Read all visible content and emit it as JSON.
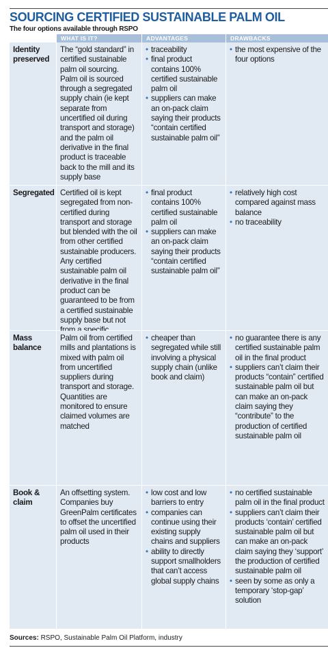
{
  "header": {
    "title": "SOURCING CERTIFIED SUSTAINABLE PALM OIL",
    "subtitle": "The four options available through RSPO"
  },
  "table": {
    "columns": [
      "WHAT IS IT?",
      "ADVANTAGES",
      "DRAWBACKS"
    ],
    "rows": [
      {
        "label": "Identity preserved",
        "what": "The “gold standard” in certified sustainable palm oil sourcing. Palm oil is sourced through a segregated supply chain (ie kept separate from uncertified oil during transport and storage) and the palm oil derivative in the final product is traceable back to the mill and its supply base",
        "advantages": [
          "traceability",
          "final product contains 100% certified sustainable palm oil",
          "suppliers can make an on-pack claim saying their products “contain certified sustainable palm oil”"
        ],
        "drawbacks": [
          "the most expensive of the four options"
        ]
      },
      {
        "label": "Segregated",
        "what": "Certified oil is kept segregated from non-certified during transport and storage but blended with the oil from other certified sustainable producers. Any certified sustainable palm oil derivative in the final product can be guaranteed to be from a certified sustainable supply base but not from a specific plantation/mill",
        "advantages": [
          "final product contains 100% certified sustainable palm oil",
          "suppliers can make an on-pack claim saying their products “contain certified sustainable palm oil”"
        ],
        "drawbacks": [
          "relatively high cost compared against mass balance",
          "no traceability"
        ]
      },
      {
        "label": "Mass balance",
        "what": "Palm oil from certified mills and plantations is mixed with palm oil from uncertified suppliers during transport and storage. Quantities are monitored to ensure claimed volumes are matched",
        "advantages": [
          "cheaper than segregated while still involving a physical supply chain (unlike book and claim)"
        ],
        "drawbacks": [
          "no guarantee there is any certified sustainable palm oil in the final product",
          "suppliers can’t claim their products “contain” certified sustainable palm oil but can make an on-pack claim saying they “contribute” to the production of certified sustainable palm oil"
        ]
      },
      {
        "label": "Book & claim",
        "what": "An offsetting system. Companies buy GreenPalm certificates to offset the uncertified palm oil used in their products",
        "advantages": [
          "low cost and low barriers to entry",
          "companies can continue using their existing supply chains and suppliers",
          "ability to directly support smallholders that can’t access global supply chains"
        ],
        "drawbacks": [
          "no certified sustainable palm oil in the final product",
          "suppliers can’t claim their products ‘contain’ certified sustainable palm oil but can make an on-pack claim saying they ‘support’ the production of certified sustainable palm oil",
          "seen by some as only a temporary ‘stop-gap’ solution"
        ]
      }
    ]
  },
  "footer": {
    "label": "Sources:",
    "text": "RSPO, Sustainable Palm Oil Platform, industry"
  }
}
